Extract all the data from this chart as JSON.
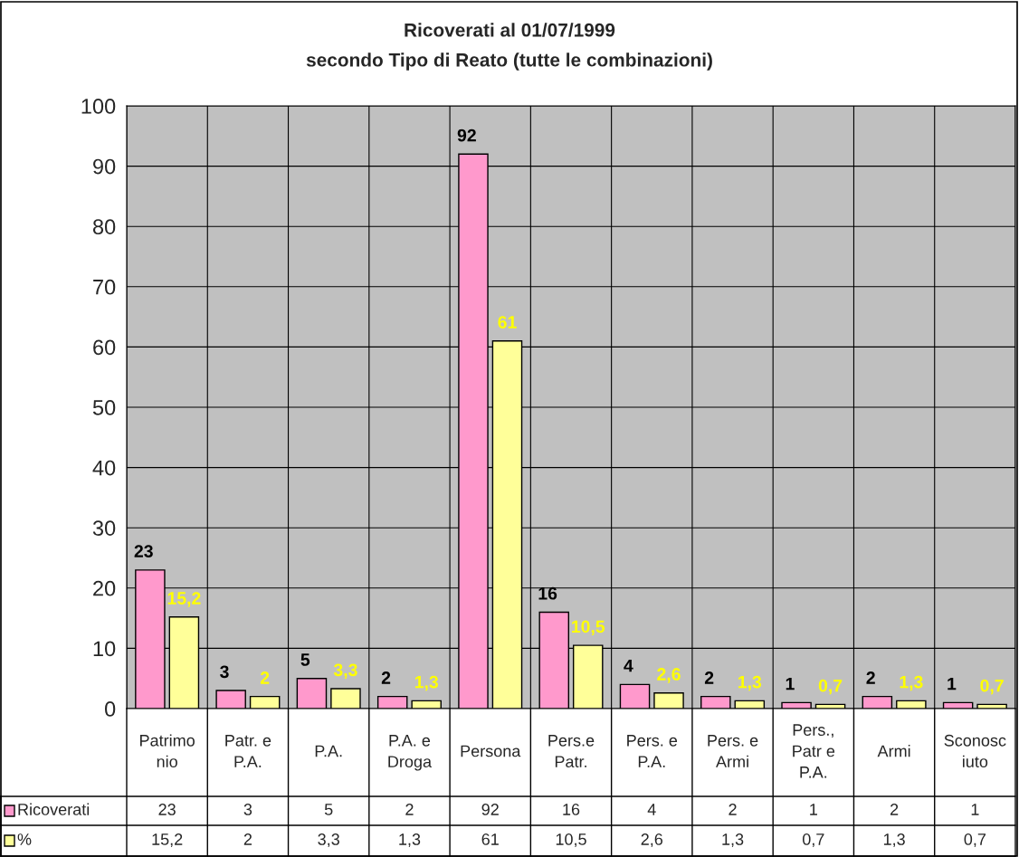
{
  "chart_data": {
    "type": "bar",
    "title": "Ricoverati al 01/07/1999",
    "subtitle": "secondo Tipo di Reato (tutte le combinazioni)",
    "categories": [
      "Patrimo\nnio",
      "Patr. e\nP.A.",
      "P.A.",
      "P.A. e\nDroga",
      "Persona",
      "Pers.e\nPatr.",
      "Pers. e\nP.A.",
      "Pers. e\nArmi",
      "Pers.,\nPatr e\nP.A.",
      "Armi",
      "Sconosc\niuto"
    ],
    "series": [
      {
        "name": "Ricoverati",
        "color": "#ff99cc",
        "values": [
          23,
          3,
          5,
          2,
          92,
          16,
          4,
          2,
          1,
          2,
          1
        ],
        "value_labels": [
          "23",
          "3",
          "5",
          "2",
          "92",
          "16",
          "4",
          "2",
          "1",
          "2",
          "1"
        ]
      },
      {
        "name": "%",
        "color": "#ffff99",
        "values": [
          15.2,
          2,
          3.3,
          1.3,
          61,
          10.5,
          2.6,
          1.3,
          0.7,
          1.3,
          0.7
        ],
        "value_labels": [
          "15,2",
          "2",
          "3,3",
          "1,3",
          "61",
          "10,5",
          "2,6",
          "1,3",
          "0,7",
          "1,3",
          "0,7"
        ]
      }
    ],
    "ylim": [
      0,
      100
    ],
    "yticks": [
      0,
      10,
      20,
      30,
      40,
      50,
      60,
      70,
      80,
      90,
      100
    ],
    "grid": true,
    "legend": "bottom",
    "data_labels": true
  }
}
